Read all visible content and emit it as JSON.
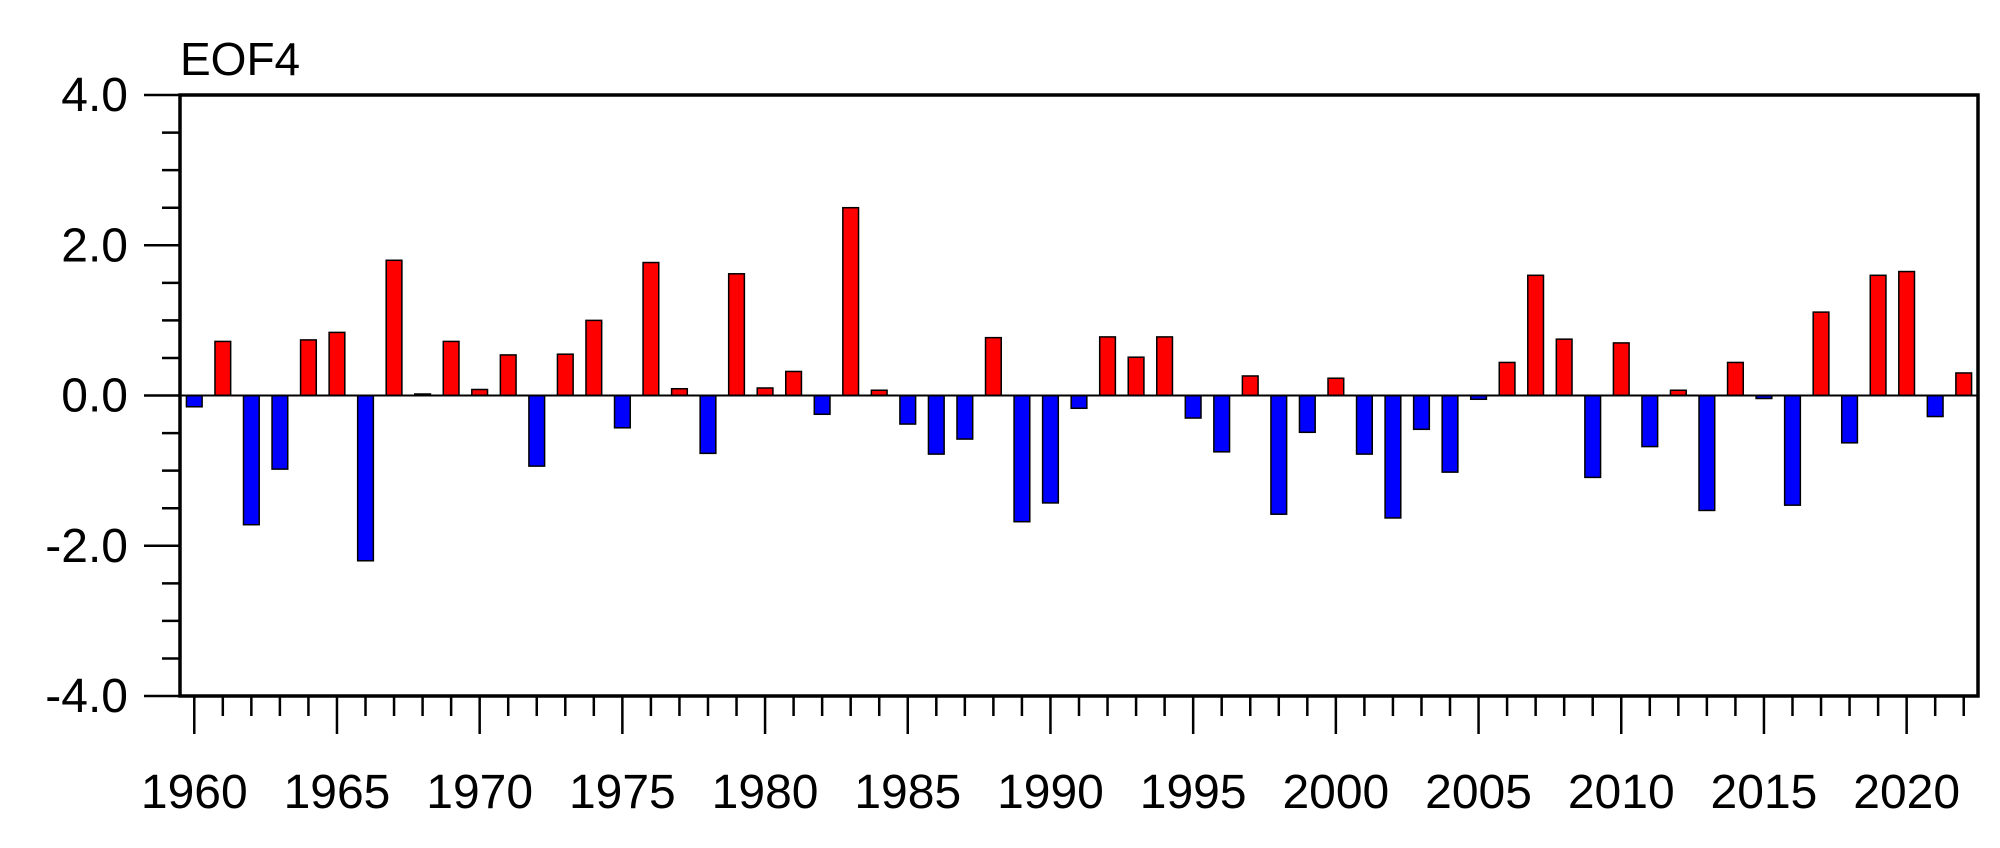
{
  "chart_data": {
    "type": "bar",
    "title": "EOF4",
    "xlabel": "",
    "ylabel": "",
    "ylim": [
      -4.0,
      4.0
    ],
    "xlim": [
      1959.5,
      2022.5
    ],
    "yticks": [
      "4.0",
      "2.0",
      "0.0",
      "-2.0",
      "-4.0"
    ],
    "ytick_values": [
      4.0,
      2.0,
      0.0,
      -2.0,
      -4.0
    ],
    "yminor_step": 0.5,
    "xticks": [
      "1960",
      "1965",
      "1970",
      "1975",
      "1980",
      "1985",
      "1990",
      "1995",
      "2000",
      "2005",
      "2010",
      "2015",
      "2020"
    ],
    "xtick_values": [
      1960,
      1965,
      1970,
      1975,
      1980,
      1985,
      1990,
      1995,
      2000,
      2005,
      2010,
      2015,
      2020
    ],
    "positive_color": "#ff0000",
    "negative_color": "#0000ff",
    "years": [
      1960,
      1961,
      1962,
      1963,
      1964,
      1965,
      1966,
      1967,
      1968,
      1969,
      1970,
      1971,
      1972,
      1973,
      1974,
      1975,
      1976,
      1977,
      1978,
      1979,
      1980,
      1981,
      1982,
      1983,
      1984,
      1985,
      1986,
      1987,
      1988,
      1989,
      1990,
      1991,
      1992,
      1993,
      1994,
      1995,
      1996,
      1997,
      1998,
      1999,
      2000,
      2001,
      2002,
      2003,
      2004,
      2005,
      2006,
      2007,
      2008,
      2009,
      2010,
      2011,
      2012,
      2013,
      2014,
      2015,
      2016,
      2017,
      2018,
      2019,
      2020,
      2021,
      2022
    ],
    "values": [
      -0.15,
      0.72,
      -1.72,
      -0.98,
      0.74,
      0.84,
      -2.2,
      1.8,
      0.02,
      0.72,
      0.08,
      0.54,
      -0.94,
      0.55,
      1.0,
      -0.43,
      1.77,
      0.09,
      -0.77,
      1.62,
      0.1,
      0.32,
      -0.25,
      2.5,
      0.07,
      -0.38,
      -0.78,
      -0.58,
      0.77,
      -1.68,
      -1.43,
      -0.17,
      0.78,
      0.51,
      0.78,
      -0.3,
      -0.75,
      0.26,
      -1.58,
      -0.49,
      0.23,
      -0.78,
      -1.63,
      -0.45,
      -1.02,
      -0.05,
      0.44,
      1.6,
      0.75,
      -1.09,
      0.7,
      -0.68,
      0.07,
      -1.53,
      0.44,
      -0.04,
      -1.46,
      1.11,
      -0.63,
      1.6,
      1.65,
      -0.28,
      0.3
    ]
  }
}
